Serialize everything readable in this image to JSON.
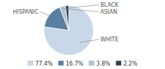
{
  "chart_data": {
    "type": "pie",
    "categories": [
      "WHITE",
      "HISPANIC",
      "ASIAN",
      "BLACK"
    ],
    "values": [
      77.4,
      16.7,
      3.8,
      2.2
    ],
    "value_labels": [
      "77.4%",
      "16.7%",
      "3.8%",
      "2.2%"
    ],
    "colors": [
      "#c8d8e8",
      "#5a7fa0",
      "#b0c4d4",
      "#2c3e50"
    ],
    "legend": "bottom"
  }
}
